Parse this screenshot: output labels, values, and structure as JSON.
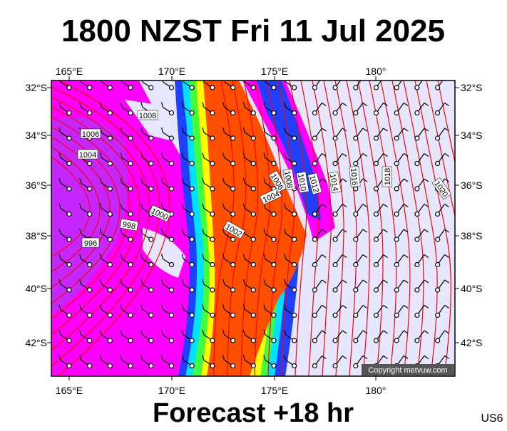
{
  "header": {
    "title": "1800 NZST Fri 11 Jul 2025"
  },
  "footer": {
    "forecast": "Forecast +18 hr",
    "code": "US6"
  },
  "map": {
    "lon_labels": [
      "165°E",
      "170°E",
      "175°E",
      "180°"
    ],
    "lat_labels": [
      "32°S",
      "34°S",
      "36°S",
      "38°S",
      "40°S",
      "42°S"
    ],
    "isobar_labels": [
      "1008",
      "1006",
      "1004",
      "1000",
      "998",
      "996",
      "1002",
      "1004",
      "1006",
      "1008",
      "1010",
      "1012",
      "1014",
      "1016",
      "1018",
      "1020"
    ],
    "copyright": "Copyright metvuw.com"
  }
}
